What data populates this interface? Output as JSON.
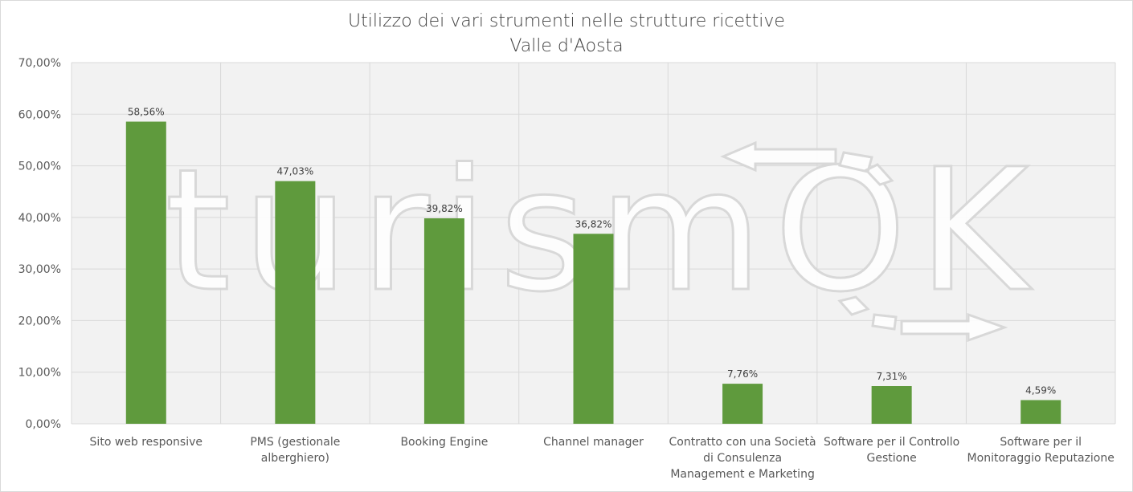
{
  "chart_data": {
    "type": "bar",
    "title_lines": [
      "Utilizzo dei vari strumenti  nelle strutture ricettive",
      "Valle d'Aosta"
    ],
    "categories": [
      [
        "Sito web responsive"
      ],
      [
        "PMS (gestionale",
        "alberghiero)"
      ],
      [
        "Booking Engine"
      ],
      [
        "Channel manager"
      ],
      [
        "Contratto con una Società",
        "di Consulenza",
        "Management e Marketing"
      ],
      [
        "Software per il Controllo",
        "Gestione"
      ],
      [
        "Software per il",
        "Monitoraggio Reputazione"
      ]
    ],
    "values": [
      58.56,
      47.03,
      39.82,
      36.82,
      7.76,
      7.31,
      4.59
    ],
    "data_labels": [
      "58,56%",
      "47,03%",
      "39,82%",
      "36,82%",
      "7,76%",
      "7,31%",
      "4,59%"
    ],
    "y_ticks": [
      "0,00%",
      "10,00%",
      "20,00%",
      "30,00%",
      "40,00%",
      "50,00%",
      "60,00%",
      "70,00%"
    ],
    "ylim": [
      0,
      70
    ],
    "grid": true,
    "bar_color": "#5f9a3d",
    "plot_background": "#f2f2f2",
    "watermark": "turismOK"
  }
}
